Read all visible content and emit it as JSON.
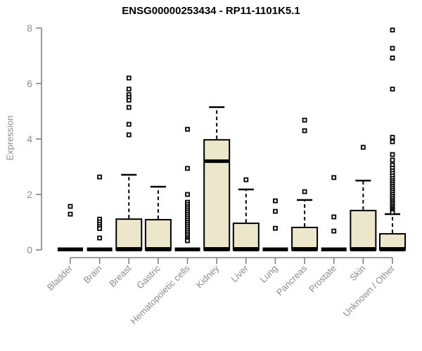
{
  "chart_data": {
    "type": "boxplot",
    "title": "ENSG00000253434 - RP11-1101K5.1",
    "xlabel": "",
    "ylabel": "Expression",
    "ylim": [
      0,
      8
    ],
    "yticks": [
      0,
      2,
      4,
      6,
      8
    ],
    "grid": false,
    "legend": "none",
    "categories": [
      "Bladder",
      "Brain",
      "Breast",
      "Gastric",
      "Hematopoietic cells",
      "Kidney",
      "Liver",
      "Lung",
      "Pancreas",
      "Prostate",
      "Skin",
      "Unknown / Other"
    ],
    "boxes": [
      {
        "category": "Bladder",
        "q1": 0,
        "median": 0,
        "q3": 0,
        "whisker_low": 0,
        "whisker_high": 0,
        "flat": true,
        "outliers": [
          1.57,
          1.29
        ]
      },
      {
        "category": "Brain",
        "q1": 0,
        "median": 0,
        "q3": 0,
        "whisker_low": 0,
        "whisker_high": 0,
        "flat": true,
        "outliers": [
          2.63,
          1.11,
          1.01,
          0.92,
          0.84,
          0.77,
          0.43
        ]
      },
      {
        "category": "Breast",
        "q1": 0,
        "median": 0,
        "q3": 1.11,
        "whisker_low": 0,
        "whisker_high": 2.71,
        "flat": false,
        "outliers": [
          6.2,
          5.8,
          5.6,
          5.5,
          5.4,
          5.14,
          4.53,
          4.15
        ]
      },
      {
        "category": "Gastric",
        "q1": 0,
        "median": 0,
        "q3": 1.09,
        "whisker_low": 0,
        "whisker_high": 2.28,
        "flat": false,
        "outliers": []
      },
      {
        "category": "Hematopoietic cells",
        "q1": 0,
        "median": 0,
        "q3": 0,
        "whisker_low": 0,
        "whisker_high": 0,
        "flat": true,
        "outliers": [
          4.35,
          2.94,
          2.0,
          1.72,
          1.64,
          1.56,
          1.49,
          1.42,
          1.35,
          1.28,
          1.21,
          1.14,
          1.07,
          1.0,
          0.93,
          0.86,
          0.79,
          0.72,
          0.65,
          0.58,
          0.51,
          0.44,
          0.38,
          0.33
        ]
      },
      {
        "category": "Kidney",
        "q1": 0,
        "median": 3.2,
        "q3": 3.97,
        "whisker_low": 0,
        "whisker_high": 5.15,
        "flat": false,
        "outliers": []
      },
      {
        "category": "Liver",
        "q1": 0,
        "median": 0,
        "q3": 0.96,
        "whisker_low": 0,
        "whisker_high": 2.18,
        "flat": false,
        "outliers": [
          2.53
        ]
      },
      {
        "category": "Lung",
        "q1": 0,
        "median": 0,
        "q3": 0,
        "whisker_low": 0,
        "whisker_high": 0,
        "flat": true,
        "outliers": [
          1.77,
          1.39,
          0.78
        ]
      },
      {
        "category": "Pancreas",
        "q1": 0,
        "median": 0,
        "q3": 0.81,
        "whisker_low": 0,
        "whisker_high": 1.8,
        "flat": false,
        "outliers": [
          4.68,
          4.3,
          2.1
        ]
      },
      {
        "category": "Prostate",
        "q1": 0,
        "median": 0,
        "q3": 0,
        "whisker_low": 0,
        "whisker_high": 0,
        "flat": true,
        "outliers": [
          2.61,
          1.19,
          0.68
        ]
      },
      {
        "category": "Skin",
        "q1": 0,
        "median": 0,
        "q3": 1.42,
        "whisker_low": 0,
        "whisker_high": 2.5,
        "flat": false,
        "outliers": [
          3.7
        ]
      },
      {
        "category": "Unknown / Other",
        "q1": 0,
        "median": 0,
        "q3": 0.58,
        "whisker_low": 0,
        "whisker_high": 1.29,
        "flat": false,
        "outliers": [
          7.93,
          7.27,
          6.92,
          5.8,
          4.06,
          3.9,
          3.44,
          3.24,
          3.06,
          2.95,
          2.85,
          2.76,
          2.67,
          2.58,
          2.5,
          2.43,
          2.36,
          2.29,
          2.22,
          2.15,
          2.08,
          2.01,
          1.94,
          1.87,
          1.8,
          1.74,
          1.68,
          1.62,
          1.56,
          1.5,
          1.45,
          1.4,
          1.35
        ]
      }
    ],
    "colors": {
      "box_fill": "#ece7cb",
      "box_stroke": "#000000",
      "median": "#000000",
      "whisker": "#000000",
      "outlier_stroke": "#000000",
      "outlier_fill": "#ffffff",
      "axis_line": "#7a7a7a",
      "axis_text": "#8c8c8c",
      "title": "#000000",
      "background": "#ffffff"
    }
  }
}
